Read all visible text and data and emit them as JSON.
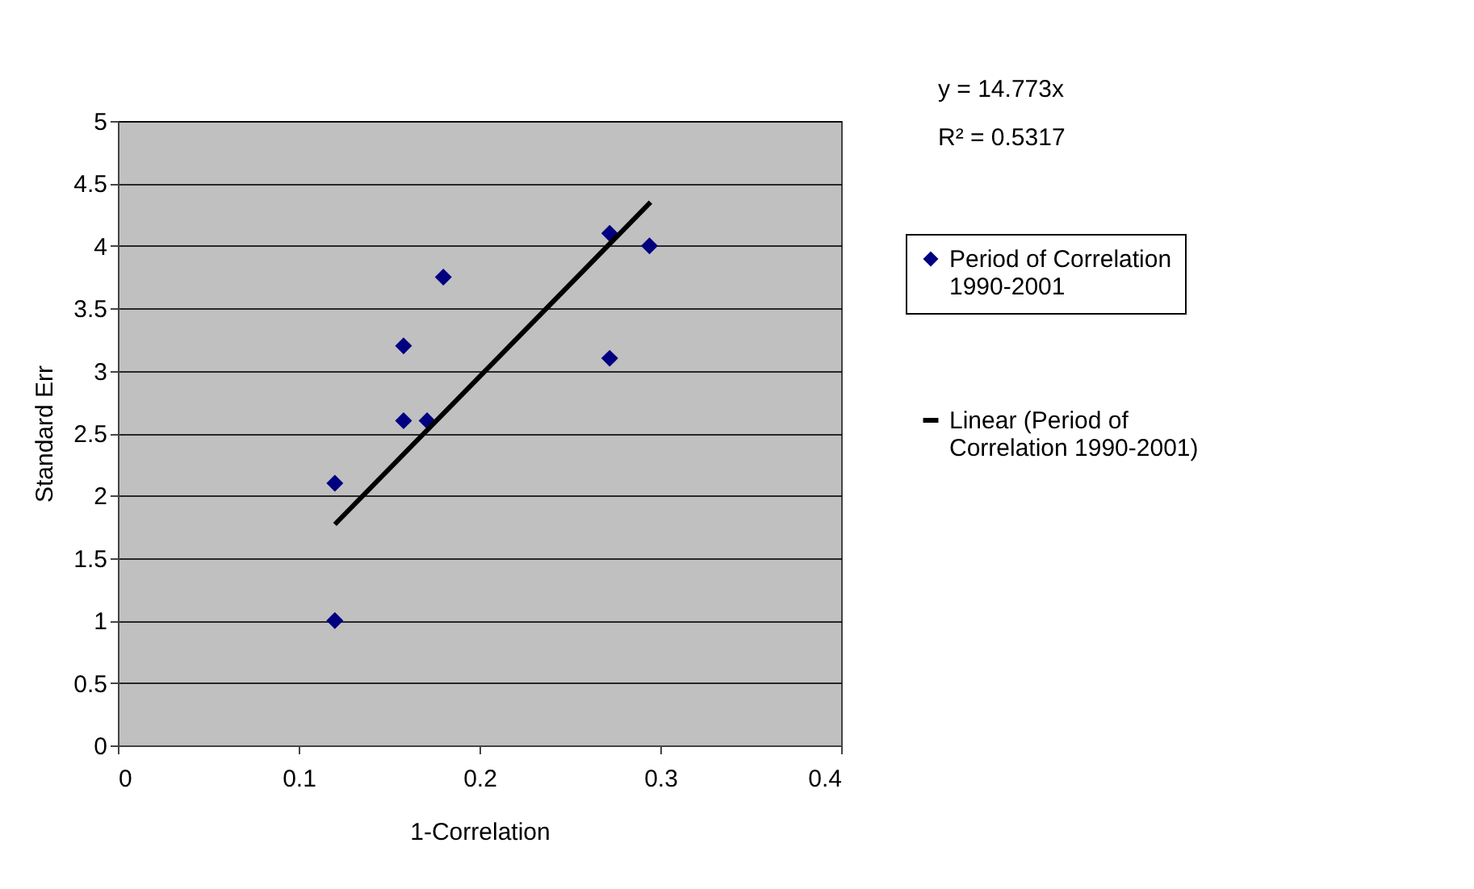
{
  "chart_data": {
    "type": "scatter",
    "xlabel": "1-Correlation",
    "ylabel": "Standard Err",
    "annotations": [
      "y = 14.773x",
      "R² = 0.5317"
    ],
    "xlim": [
      0,
      0.4
    ],
    "xticks": [
      0,
      0.1,
      0.2,
      0.3,
      0.4
    ],
    "ylim": [
      0,
      5
    ],
    "yticks": [
      0,
      0.5,
      1,
      1.5,
      2,
      2.5,
      3,
      3.5,
      4,
      4.5,
      5
    ],
    "grid": "y",
    "legend": "right",
    "series": [
      {
        "name": "Period of Correlation 1990-2001",
        "marker": "diamond",
        "color": "#000080",
        "x": [
          0.12,
          0.12,
          0.158,
          0.171,
          0.158,
          0.18,
          0.272,
          0.272,
          0.294
        ],
        "values": [
          1.0,
          2.1,
          2.6,
          2.6,
          3.2,
          3.75,
          4.1,
          3.1,
          4.0
        ]
      },
      {
        "name": "Linear (Period of Correlation 1990-2001)",
        "type": "line",
        "line_style": "solid",
        "color": "#000000",
        "x": [
          0.12,
          0.2946
        ],
        "values": [
          1.77,
          4.35
        ]
      }
    ]
  }
}
